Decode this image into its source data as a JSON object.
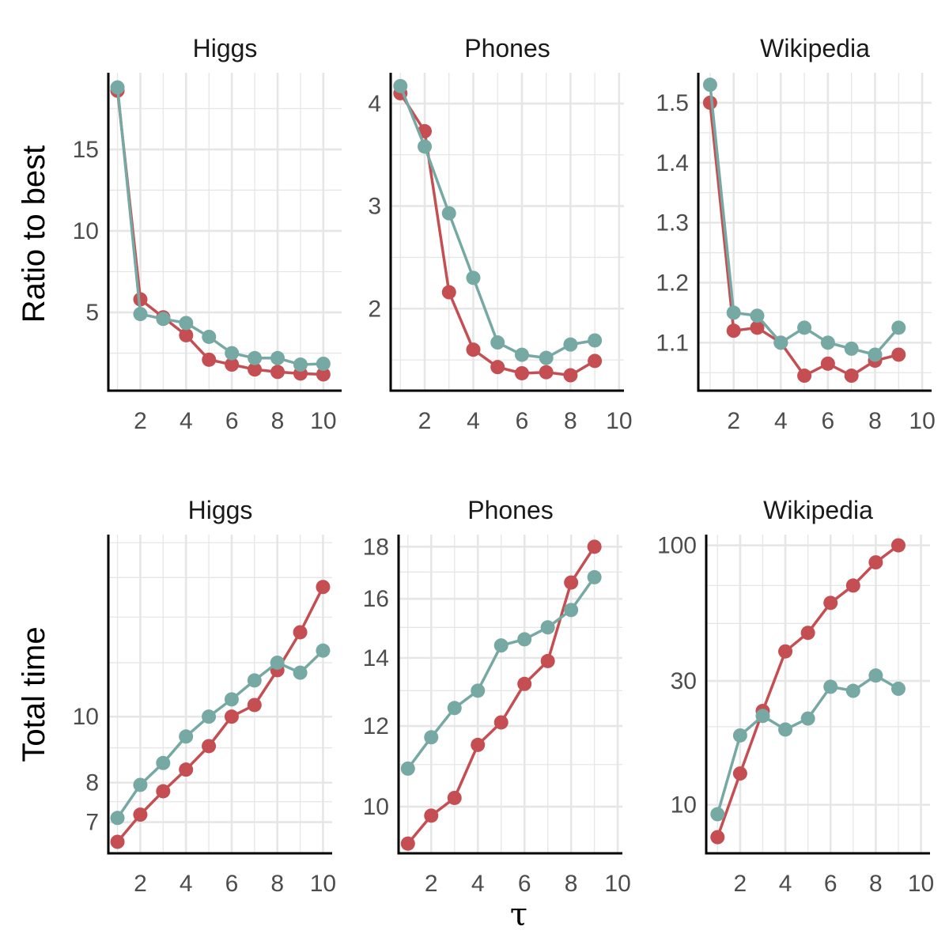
{
  "colors": {
    "red": "#c44e52",
    "teal": "#76a9a3",
    "grid": "#e6e6e6",
    "axis": "#000000"
  },
  "figure": {
    "xlabel": "τ",
    "row_ylabels": [
      "Ratio to best",
      "Total time"
    ]
  },
  "chart_data": [
    {
      "type": "line",
      "title": "Higgs",
      "ylabel": "Ratio to best",
      "xlabel": "",
      "xlim": [
        0.6,
        10.8
      ],
      "ylim": [
        0.2,
        19.7
      ],
      "yscale": "linear",
      "x_ticks": [
        2,
        4,
        6,
        8,
        10
      ],
      "y_ticks": [
        5,
        10,
        15
      ],
      "y_minor": [
        2.5,
        7.5,
        12.5,
        17.5
      ],
      "series": [
        {
          "color": "red",
          "x": [
            1,
            2,
            3,
            4,
            5,
            6,
            7,
            8,
            9,
            10
          ],
          "y": [
            18.6,
            5.8,
            4.7,
            3.6,
            2.1,
            1.8,
            1.5,
            1.35,
            1.25,
            1.2
          ]
        },
        {
          "color": "teal",
          "x": [
            1,
            2,
            3,
            4,
            5,
            6,
            7,
            8,
            9,
            10
          ],
          "y": [
            18.8,
            4.9,
            4.6,
            4.35,
            3.5,
            2.5,
            2.2,
            2.2,
            1.8,
            1.85
          ]
        }
      ]
    },
    {
      "type": "line",
      "title": "Phones",
      "ylabel": "",
      "xlabel": "",
      "xlim": [
        0.6,
        10.2
      ],
      "ylim": [
        1.2,
        4.3
      ],
      "yscale": "linear",
      "x_ticks": [
        2,
        4,
        6,
        8,
        10
      ],
      "y_ticks": [
        2,
        3,
        4
      ],
      "y_minor": [
        1.5,
        2.5,
        3.5
      ],
      "series": [
        {
          "color": "red",
          "x": [
            1,
            2,
            3,
            4,
            5,
            6,
            7,
            8,
            9
          ],
          "y": [
            4.1,
            3.73,
            2.16,
            1.6,
            1.43,
            1.37,
            1.38,
            1.35,
            1.49
          ]
        },
        {
          "color": "teal",
          "x": [
            1,
            2,
            3,
            4,
            5,
            6,
            7,
            8,
            9
          ],
          "y": [
            4.17,
            3.58,
            2.93,
            2.3,
            1.67,
            1.55,
            1.52,
            1.65,
            1.69
          ]
        }
      ]
    },
    {
      "type": "line",
      "title": "Wikipedia",
      "ylabel": "",
      "xlabel": "",
      "xlim": [
        0.5,
        10.4
      ],
      "ylim": [
        1.02,
        1.55
      ],
      "yscale": "linear",
      "x_ticks": [
        2,
        4,
        6,
        8,
        10
      ],
      "y_ticks": [
        1.1,
        1.2,
        1.3,
        1.4,
        1.5
      ],
      "y_minor": [
        1.05,
        1.15,
        1.25,
        1.35,
        1.45
      ],
      "series": [
        {
          "color": "red",
          "x": [
            1,
            2,
            3,
            4,
            5,
            6,
            7,
            8,
            9
          ],
          "y": [
            1.5,
            1.12,
            1.125,
            1.1,
            1.045,
            1.065,
            1.045,
            1.07,
            1.08
          ]
        },
        {
          "color": "teal",
          "x": [
            1,
            2,
            3,
            4,
            5,
            6,
            7,
            8,
            9
          ],
          "y": [
            1.53,
            1.15,
            1.145,
            1.1,
            1.125,
            1.1,
            1.09,
            1.08,
            1.125
          ]
        }
      ]
    },
    {
      "type": "line",
      "title": "Higgs",
      "ylabel": "Total time",
      "xlabel": "",
      "xlim": [
        0.6,
        10.4
      ],
      "ylim": [
        6.3,
        18.5
      ],
      "yscale": "log",
      "x_ticks": [
        2,
        4,
        6,
        8,
        10
      ],
      "y_ticks": [
        7,
        8,
        10
      ],
      "y_minor": [
        7.5,
        9,
        12,
        14,
        16,
        18
      ],
      "series": [
        {
          "color": "red",
          "x": [
            1,
            2,
            3,
            4,
            5,
            6,
            7,
            8,
            9,
            10
          ],
          "y": [
            6.55,
            7.18,
            7.77,
            8.36,
            9.05,
            10.0,
            10.4,
            11.7,
            13.3,
            15.5
          ]
        },
        {
          "color": "teal",
          "x": [
            1,
            2,
            3,
            4,
            5,
            6,
            7,
            8,
            9,
            10
          ],
          "y": [
            7.1,
            7.94,
            8.55,
            9.35,
            10.0,
            10.6,
            11.3,
            12.0,
            11.6,
            12.5
          ]
        }
      ]
    },
    {
      "type": "line",
      "title": "Phones",
      "ylabel": "",
      "xlabel": "τ",
      "xlim": [
        0.6,
        10.2
      ],
      "ylim": [
        9.0,
        18.5
      ],
      "yscale": "log",
      "x_ticks": [
        2,
        4,
        6,
        8,
        10
      ],
      "y_ticks": [
        10,
        12,
        14,
        16,
        18
      ],
      "y_minor": [
        11,
        13,
        15,
        17
      ],
      "series": [
        {
          "color": "red",
          "x": [
            1,
            2,
            3,
            4,
            5,
            6,
            7,
            8,
            9
          ],
          "y": [
            9.2,
            9.8,
            10.2,
            11.5,
            12.1,
            13.2,
            13.9,
            16.6,
            18.0
          ]
        },
        {
          "color": "teal",
          "x": [
            1,
            2,
            3,
            4,
            5,
            6,
            7,
            8,
            9
          ],
          "y": [
            10.9,
            11.7,
            12.5,
            13.0,
            14.4,
            14.6,
            15.0,
            15.6,
            16.8
          ]
        }
      ]
    },
    {
      "type": "line",
      "title": "Wikipedia",
      "ylabel": "",
      "xlabel": "",
      "xlim": [
        0.5,
        10.4
      ],
      "ylim": [
        6.5,
        110
      ],
      "yscale": "log",
      "x_ticks": [
        2,
        4,
        6,
        8,
        10
      ],
      "y_ticks": [
        10,
        30,
        100
      ],
      "y_minor": [
        20,
        50,
        70
      ],
      "series": [
        {
          "color": "red",
          "x": [
            1,
            2,
            3,
            4,
            5,
            6,
            7,
            8,
            9
          ],
          "y": [
            7.5,
            13.2,
            23.0,
            39.0,
            46.0,
            60.0,
            70.0,
            86.0,
            100.0
          ]
        },
        {
          "color": "teal",
          "x": [
            1,
            2,
            3,
            4,
            5,
            6,
            7,
            8,
            9
          ],
          "y": [
            9.2,
            18.5,
            22.0,
            19.5,
            21.5,
            28.5,
            27.5,
            31.5,
            28.0
          ]
        }
      ]
    }
  ]
}
